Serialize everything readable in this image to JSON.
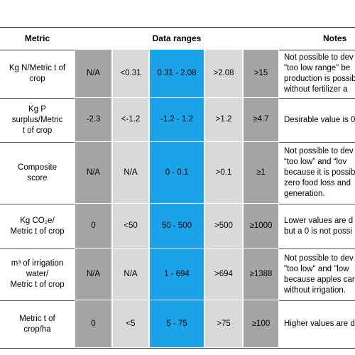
{
  "table": {
    "headers": [
      "Metric",
      "Data ranges",
      "Notes"
    ],
    "rows": [
      {
        "metric": [
          "Kg N/Metric t of",
          "crop"
        ],
        "ranges": [
          "N/A",
          "<0.31",
          "0.31 - 2.08",
          ">2.08",
          ">15"
        ],
        "notes": [
          "Not possible to dev",
          "\"too low range\" be",
          "production is possib",
          "without fertilizer a"
        ]
      },
      {
        "metric": [
          "Kg P",
          "surplus/Metric",
          "t of crop"
        ],
        "ranges": [
          "-2.3",
          "<-1.2",
          "-1.2 - 1.2",
          ">1.2",
          "≥4.7"
        ],
        "notes": [
          "Desirable value is 0"
        ]
      },
      {
        "metric": [
          "Composite",
          "score"
        ],
        "ranges": [
          "N/A",
          "N/A",
          "0 - 0.1",
          ">0.1",
          "≥1"
        ],
        "notes": [
          "Not possible to dev",
          "“too low” and “lov",
          "because it is possib",
          "zero food loss and",
          "generation."
        ]
      },
      {
        "metric": [
          "Kg CO₂e/",
          "Metric t of crop"
        ],
        "ranges": [
          "0",
          "<50",
          "50 - 500",
          ">500",
          "≥1000"
        ],
        "notes": [
          "Lower values are d",
          "but a 0 is not possi"
        ]
      },
      {
        "metric": [
          "m³ of irrigation",
          "water/",
          "Metric t of crop"
        ],
        "ranges": [
          "N/A",
          "N/A",
          "1 - 694",
          ">694",
          "≥1388"
        ],
        "notes": [
          "Not possible to dev",
          "\"too low\" and \"low",
          "because apples can",
          "without irrigation."
        ]
      },
      {
        "metric": [
          "Metric t of",
          "crop/ha"
        ],
        "ranges": [
          "0",
          "<5",
          "5 - 75",
          ">75",
          "≥100"
        ],
        "notes": [
          "Higher values are d"
        ]
      }
    ]
  }
}
